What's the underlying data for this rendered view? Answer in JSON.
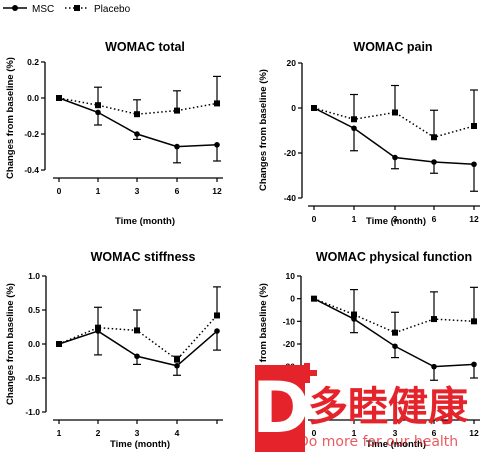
{
  "legend": {
    "msc_label": "MSC",
    "placebo_label": "Placebo"
  },
  "watermark": {
    "logo_letter": "D",
    "cn_text": "多睦健康",
    "en_text": "Do more for our health",
    "color": "#e4232a"
  },
  "chart_data": [
    {
      "type": "line",
      "title": "WOMAC total",
      "xlabel": "Time (month)",
      "ylabel": "Changes from baseline (%)",
      "x": [
        "0",
        "1",
        "3",
        "6",
        "12"
      ],
      "yticks": [
        "0.2",
        "0.0",
        "-0.2",
        "-0.4"
      ],
      "ylim": [
        -0.4,
        0.2
      ],
      "series": [
        {
          "name": "MSC",
          "style": "solid",
          "marker": "circle",
          "values": [
            0,
            -0.08,
            -0.2,
            -0.27,
            -0.26
          ],
          "err_low": [
            0,
            0.07,
            0.03,
            0.09,
            0.09
          ],
          "err_high": [
            0,
            0,
            0,
            0,
            0
          ]
        },
        {
          "name": "Placebo",
          "style": "dotted",
          "marker": "square",
          "values": [
            0,
            -0.04,
            -0.09,
            -0.07,
            -0.03
          ],
          "err_low": [
            0,
            0,
            0,
            0,
            0
          ],
          "err_high": [
            0,
            0.1,
            0.08,
            0.11,
            0.15
          ]
        }
      ]
    },
    {
      "type": "line",
      "title": "WOMAC pain",
      "xlabel": "Time (month)",
      "ylabel": "Changes from baseline (%)",
      "x": [
        "0",
        "1",
        "3",
        "6",
        "12"
      ],
      "yticks": [
        "20",
        "0",
        "-20",
        "-40"
      ],
      "ylim": [
        -40,
        20
      ],
      "series": [
        {
          "name": "MSC",
          "style": "solid",
          "marker": "circle",
          "values": [
            0,
            -9,
            -22,
            -24,
            -25
          ],
          "err_low": [
            0,
            10,
            5,
            5,
            12
          ],
          "err_high": [
            0,
            0,
            0,
            0,
            0
          ]
        },
        {
          "name": "Placebo",
          "style": "dotted",
          "marker": "square",
          "values": [
            0,
            -5,
            -2,
            -13,
            -8
          ],
          "err_low": [
            0,
            0,
            0,
            0,
            0
          ],
          "err_high": [
            0,
            11,
            12,
            12,
            16
          ]
        }
      ]
    },
    {
      "type": "line",
      "title": "WOMAC stiffness",
      "xlabel": "Time (month)",
      "ylabel": "Changes from baseline (%)",
      "x": [
        "1",
        "2",
        "3",
        "4",
        ""
      ],
      "yticks": [
        "1.0",
        "0.5",
        "0.0",
        "-0.5",
        "-1.0"
      ],
      "ylim": [
        -1.0,
        1.0
      ],
      "series": [
        {
          "name": "MSC",
          "style": "solid",
          "marker": "circle",
          "values": [
            0,
            0.19,
            -0.18,
            -0.32,
            0.19
          ],
          "err_low": [
            0,
            0.35,
            0.12,
            0.14,
            0.28
          ],
          "err_high": [
            0,
            0,
            0,
            0,
            0
          ]
        },
        {
          "name": "Placebo",
          "style": "dotted",
          "marker": "square",
          "values": [
            0,
            0.24,
            0.2,
            -0.23,
            0.42
          ],
          "err_low": [
            0,
            0,
            0,
            0,
            0
          ],
          "err_high": [
            0,
            0.3,
            0.3,
            0.05,
            0.42
          ]
        }
      ]
    },
    {
      "type": "line",
      "title": "WOMAC physical function",
      "xlabel": "Time (month)",
      "ylabel": "Changes from baseline (%)",
      "x": [
        "0",
        "1",
        "3",
        "6",
        "12"
      ],
      "yticks": [
        "10",
        "0",
        "-10",
        "-20",
        "-30",
        "-40",
        "-50"
      ],
      "ylim": [
        -50,
        10
      ],
      "series": [
        {
          "name": "MSC",
          "style": "solid",
          "marker": "circle",
          "values": [
            0,
            -9,
            -21,
            -30,
            -29
          ],
          "err_low": [
            0,
            6,
            5,
            6,
            6
          ],
          "err_high": [
            0,
            0,
            0,
            0,
            0
          ]
        },
        {
          "name": "Placebo",
          "style": "dotted",
          "marker": "square",
          "values": [
            0,
            -7,
            -15,
            -9,
            -10
          ],
          "err_low": [
            0,
            0,
            0,
            0,
            0
          ],
          "err_high": [
            0,
            11,
            9,
            12,
            15
          ]
        }
      ]
    }
  ]
}
